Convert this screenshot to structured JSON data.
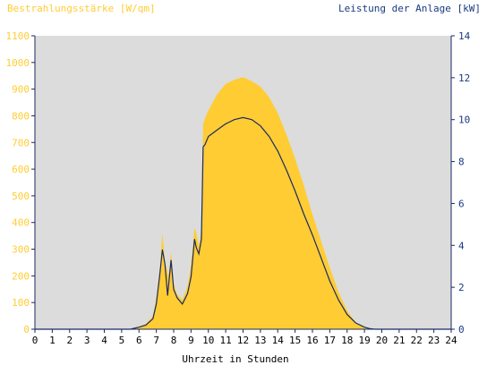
{
  "chart_data": {
    "type": "area",
    "ylabel_left": "Bestrahlungsstärke [W/qm]",
    "ylabel_right": "Leistung der Anlage [kW]",
    "xlabel": "Uhrzeit in Stunden",
    "xlim": [
      0,
      24
    ],
    "ylim_left": [
      0,
      1100
    ],
    "ylim_right": [
      0,
      14
    ],
    "x_ticks": [
      "0",
      "1",
      "2",
      "3",
      "4",
      "5",
      "6",
      "7",
      "8",
      "9",
      "10",
      "11",
      "12",
      "13",
      "14",
      "15",
      "16",
      "17",
      "18",
      "19",
      "20",
      "21",
      "22",
      "23",
      "24"
    ],
    "y_ticks_left": [
      "0",
      "100",
      "200",
      "300",
      "400",
      "500",
      "600",
      "700",
      "800",
      "900",
      "1000",
      "1100"
    ],
    "y_ticks_right": [
      "0",
      "2",
      "4",
      "6",
      "8",
      "10",
      "12",
      "14"
    ],
    "grid": false,
    "colors": {
      "irradiance_fill": "#ffcc33",
      "power_line": "#1a2a66",
      "plot_background": "#dcdcdc",
      "left_axis_text": "#ffcc33",
      "right_axis_text": "#1a3a80",
      "axis_line": "#1a2a66"
    },
    "series": [
      {
        "axis": "left",
        "style": "area",
        "x": [
          0,
          5.5,
          6,
          6.4,
          6.8,
          7,
          7.2,
          7.35,
          7.5,
          7.7,
          7.85,
          8,
          8.2,
          8.5,
          8.8,
          9,
          9.2,
          9.3,
          9.45,
          9.6,
          9.7,
          9.8,
          10,
          10.5,
          11,
          11.5,
          12,
          12.5,
          13,
          13.5,
          14,
          14.5,
          15,
          15.5,
          16,
          16.5,
          17,
          17.5,
          18,
          18.5,
          19,
          19.3,
          19.6,
          20,
          24
        ],
        "values": [
          0,
          0,
          10,
          20,
          50,
          120,
          230,
          360,
          250,
          200,
          290,
          170,
          130,
          110,
          160,
          240,
          380,
          360,
          310,
          380,
          770,
          790,
          820,
          880,
          920,
          935,
          945,
          930,
          910,
          870,
          810,
          730,
          640,
          540,
          430,
          330,
          230,
          140,
          70,
          25,
          8,
          3,
          0,
          0,
          0
        ]
      },
      {
        "axis": "right",
        "style": "line",
        "x": [
          0,
          5.5,
          6,
          6.4,
          6.8,
          7,
          7.2,
          7.35,
          7.5,
          7.65,
          7.85,
          8,
          8.2,
          8.5,
          8.8,
          9,
          9.2,
          9.3,
          9.45,
          9.6,
          9.7,
          9.8,
          10,
          10.5,
          11,
          11.5,
          12,
          12.5,
          13,
          13.5,
          14,
          14.5,
          15,
          15.5,
          16,
          16.5,
          17,
          17.5,
          18,
          18.5,
          19,
          19.3,
          19.6,
          20,
          24
        ],
        "values": [
          0,
          0,
          0.1,
          0.2,
          0.5,
          1.2,
          2.6,
          3.8,
          3.1,
          1.6,
          3.3,
          1.9,
          1.5,
          1.2,
          1.7,
          2.5,
          4.3,
          3.9,
          3.6,
          4.3,
          8.7,
          8.8,
          9.2,
          9.5,
          9.8,
          10.0,
          10.1,
          10.0,
          9.7,
          9.2,
          8.5,
          7.6,
          6.6,
          5.5,
          4.5,
          3.4,
          2.3,
          1.4,
          0.7,
          0.3,
          0.1,
          0.03,
          0,
          0,
          0
        ]
      }
    ]
  }
}
